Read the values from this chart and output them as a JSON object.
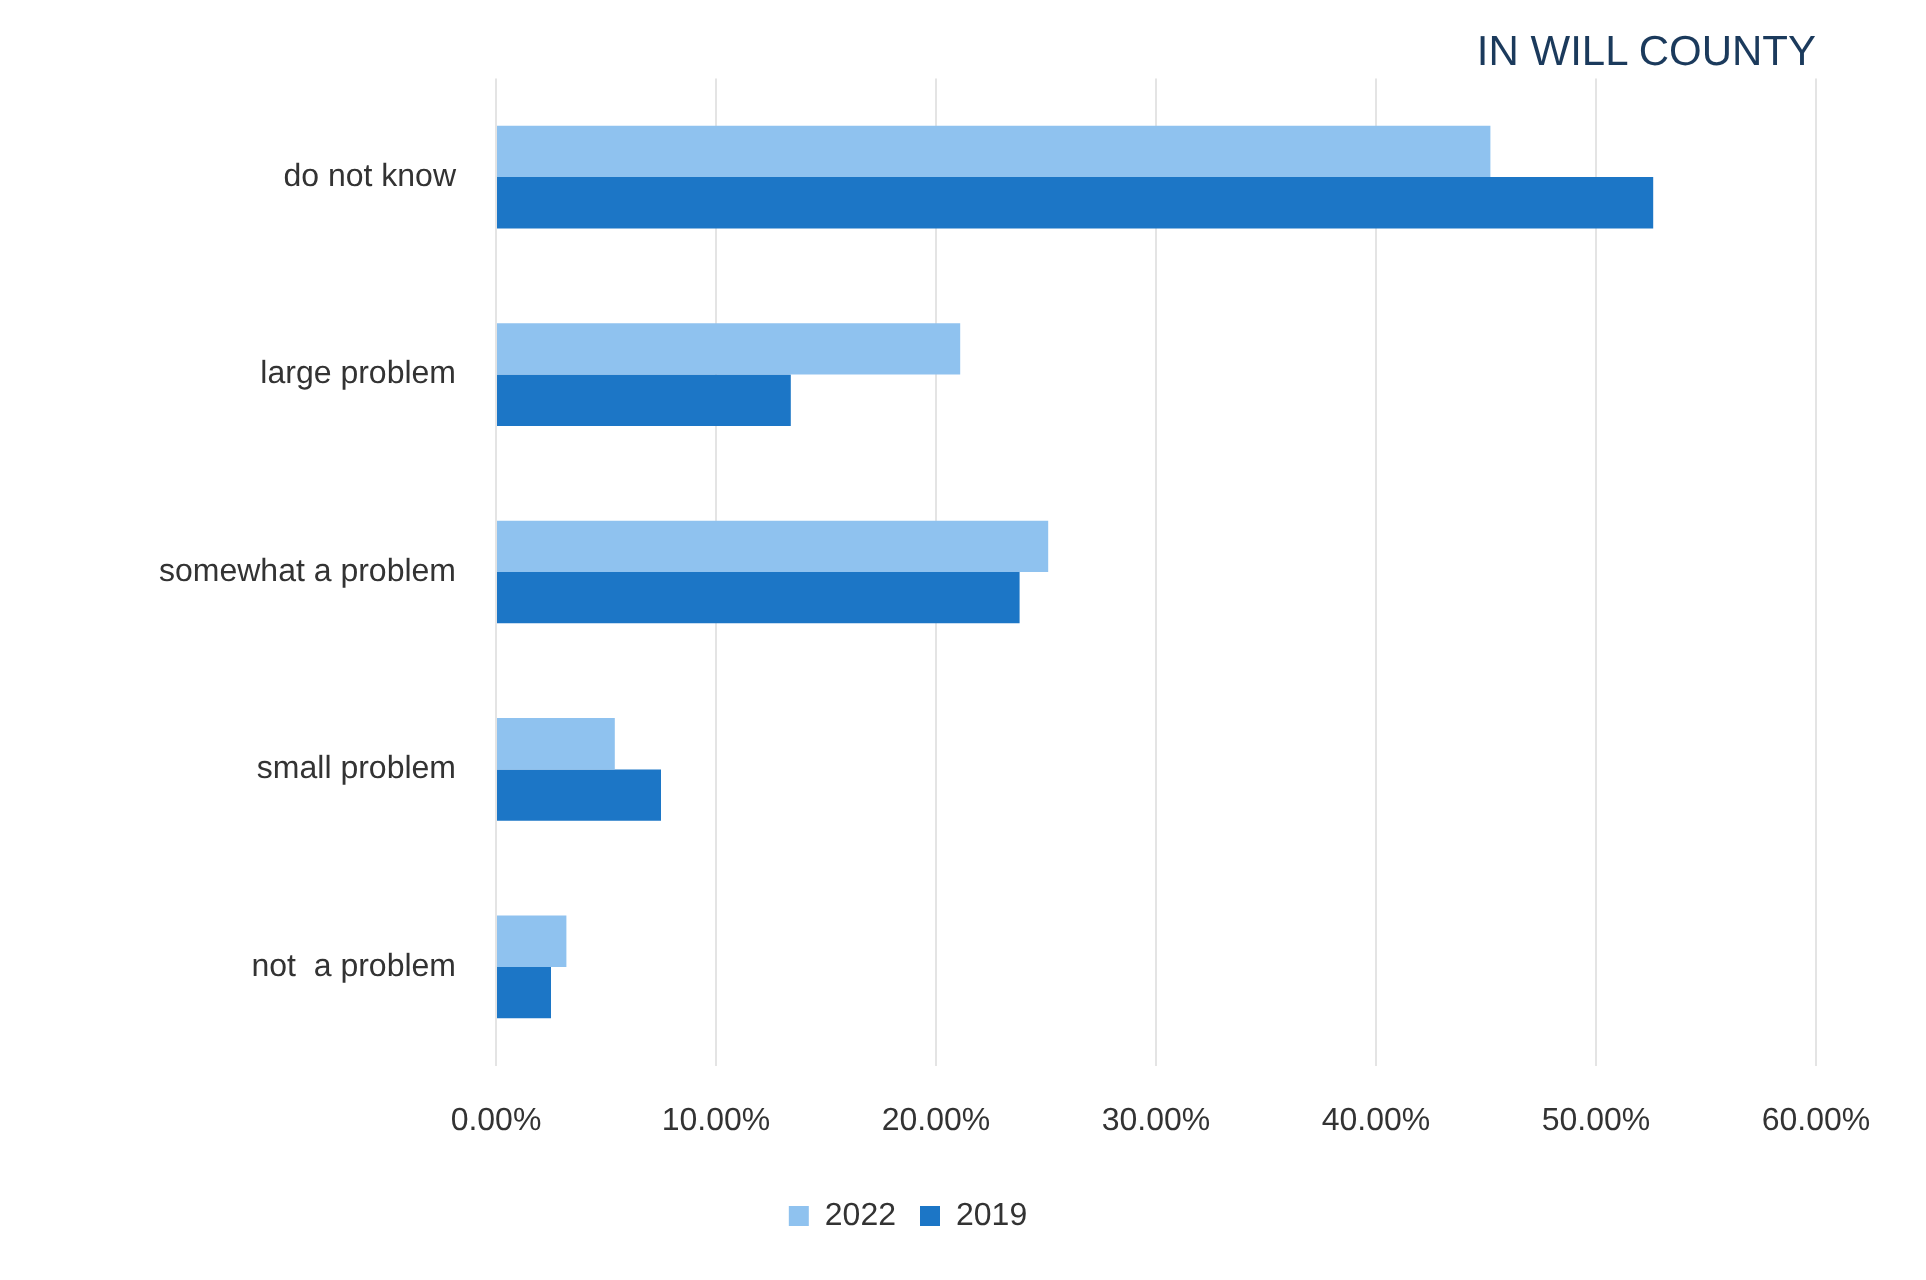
{
  "chart_data": {
    "type": "bar",
    "orientation": "horizontal",
    "title": "IN WILL COUNTY",
    "categories": [
      "do not know",
      "large problem",
      "somewhat a problem",
      "small problem",
      "not  a problem"
    ],
    "series": [
      {
        "name": "2022",
        "color": "#8fc2ef",
        "values": [
          45.2,
          21.1,
          25.1,
          5.4,
          3.2
        ]
      },
      {
        "name": "2019",
        "color": "#1c76c6",
        "values": [
          52.6,
          13.4,
          23.8,
          7.5,
          2.5
        ]
      }
    ],
    "xlim": [
      0,
      60
    ],
    "xticks": [
      {
        "value": 0,
        "label": "0.00%"
      },
      {
        "value": 10,
        "label": "10.00%"
      },
      {
        "value": 20,
        "label": "20.00%"
      },
      {
        "value": 30,
        "label": "30.00%"
      },
      {
        "value": 40,
        "label": "40.00%"
      },
      {
        "value": 50,
        "label": "50.00%"
      },
      {
        "value": 60,
        "label": "60.00%"
      }
    ],
    "grid": "x",
    "legend": "bottom"
  }
}
